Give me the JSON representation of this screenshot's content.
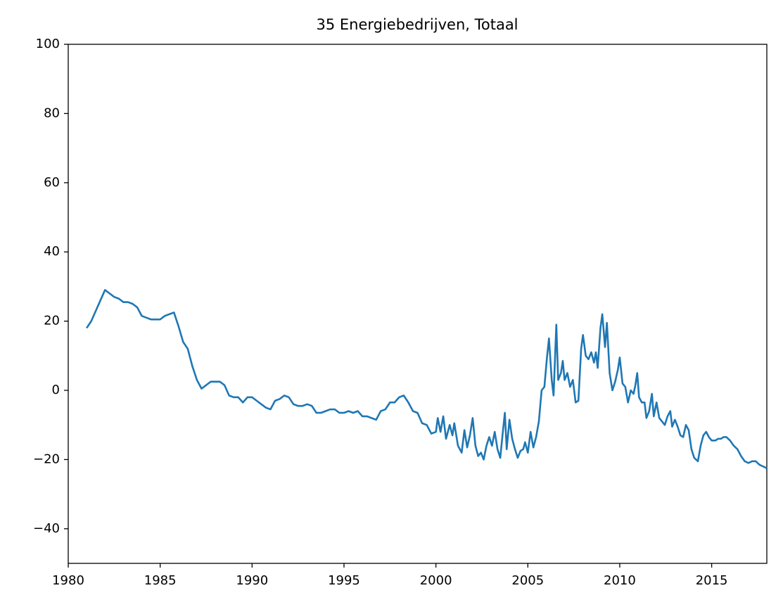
{
  "chart_data": {
    "type": "line",
    "title": "35 Energiebedrijven, Totaal",
    "x": [
      1981.0,
      1981.25,
      1981.5,
      1981.75,
      1982.0,
      1982.25,
      1982.5,
      1982.75,
      1983.0,
      1983.25,
      1983.5,
      1983.75,
      1984.0,
      1984.25,
      1984.5,
      1984.75,
      1985.0,
      1985.25,
      1985.5,
      1985.75,
      1986.0,
      1986.25,
      1986.5,
      1986.75,
      1987.0,
      1987.25,
      1987.5,
      1987.75,
      1988.0,
      1988.25,
      1988.5,
      1988.75,
      1989.0,
      1989.25,
      1989.5,
      1989.75,
      1990.0,
      1990.25,
      1990.5,
      1990.75,
      1991.0,
      1991.25,
      1991.5,
      1991.75,
      1992.0,
      1992.25,
      1992.5,
      1992.75,
      1993.0,
      1993.25,
      1993.5,
      1993.75,
      1994.0,
      1994.25,
      1994.5,
      1994.75,
      1995.0,
      1995.25,
      1995.5,
      1995.75,
      1996.0,
      1996.25,
      1996.5,
      1996.75,
      1997.0,
      1997.25,
      1997.5,
      1997.75,
      1998.0,
      1998.25,
      1998.5,
      1998.75,
      1999.0,
      1999.25,
      1999.5,
      1999.75,
      2000.0,
      2000.1,
      2000.25,
      2000.4,
      2000.55,
      2000.75,
      2000.9,
      2001.0,
      2001.2,
      2001.4,
      2001.55,
      2001.7,
      2001.85,
      2002.0,
      2002.15,
      2002.3,
      2002.45,
      2002.6,
      2002.75,
      2002.9,
      2003.05,
      2003.2,
      2003.35,
      2003.5,
      2003.65,
      2003.75,
      2003.85,
      2004.0,
      2004.15,
      2004.3,
      2004.45,
      2004.6,
      2004.75,
      2004.85,
      2005.0,
      2005.15,
      2005.3,
      2005.45,
      2005.6,
      2005.75,
      2005.9,
      2006.05,
      2006.15,
      2006.3,
      2006.4,
      2006.55,
      2006.65,
      2006.8,
      2006.9,
      2007.0,
      2007.15,
      2007.3,
      2007.45,
      2007.6,
      2007.75,
      2007.9,
      2008.0,
      2008.15,
      2008.3,
      2008.45,
      2008.6,
      2008.7,
      2008.8,
      2008.95,
      2009.05,
      2009.2,
      2009.3,
      2009.45,
      2009.6,
      2009.75,
      2009.9,
      2010.0,
      2010.15,
      2010.3,
      2010.45,
      2010.6,
      2010.75,
      2010.85,
      2010.95,
      2011.05,
      2011.2,
      2011.35,
      2011.45,
      2011.6,
      2011.75,
      2011.85,
      2012.0,
      2012.15,
      2012.3,
      2012.45,
      2012.6,
      2012.75,
      2012.85,
      2013.0,
      2013.15,
      2013.3,
      2013.45,
      2013.6,
      2013.75,
      2013.9,
      2014.05,
      2014.25,
      2014.4,
      2014.55,
      2014.7,
      2014.85,
      2015.0,
      2015.2,
      2015.35,
      2015.5,
      2015.65,
      2015.8,
      2016.0,
      2016.2,
      2016.4,
      2016.6,
      2016.8,
      2017.0,
      2017.2,
      2017.4,
      2017.6,
      2017.8,
      2018.0
    ],
    "values": [
      18,
      20,
      23,
      26,
      29,
      28,
      27,
      26.5,
      25.5,
      25.5,
      25,
      24,
      21.5,
      21,
      20.5,
      20.5,
      20.5,
      21.5,
      22,
      22.5,
      18.5,
      14,
      12,
      7,
      3,
      0.5,
      1.5,
      2.5,
      2.5,
      2.5,
      1.5,
      -1.5,
      -2,
      -2,
      -3.5,
      -2,
      -2,
      -3,
      -4,
      -5,
      -5.5,
      -3,
      -2.5,
      -1.5,
      -2,
      -4,
      -4.5,
      -4.5,
      -4,
      -4.5,
      -6.5,
      -6.5,
      -6,
      -5.5,
      -5.5,
      -6.5,
      -6.5,
      -6,
      -6.5,
      -6,
      -7.5,
      -7.5,
      -8,
      -8.5,
      -6,
      -5.5,
      -3.5,
      -3.5,
      -2,
      -1.5,
      -3.5,
      -6,
      -6.5,
      -9.5,
      -10,
      -12.5,
      -12,
      -8,
      -12,
      -7.5,
      -14,
      -10,
      -13,
      -9.5,
      -16,
      -18,
      -11.5,
      -16.5,
      -13,
      -8,
      -16,
      -19,
      -18,
      -20,
      -16,
      -13.5,
      -16,
      -12,
      -17,
      -19.5,
      -11.5,
      -6.5,
      -17,
      -8.5,
      -14,
      -17,
      -19.5,
      -17.5,
      -17,
      -15,
      -18,
      -12,
      -16.5,
      -13.5,
      -9,
      0,
      1,
      10,
      15,
      3,
      -1.5,
      19,
      3,
      5,
      8.5,
      3,
      5,
      1,
      3,
      -3.5,
      -3,
      12,
      16,
      10,
      9,
      11,
      8,
      11,
      6.5,
      18,
      22,
      12.5,
      19.5,
      5,
      0,
      2.5,
      6,
      9.5,
      2,
      1,
      -3.5,
      0,
      -1,
      1.5,
      5,
      -2,
      -3.5,
      -3.5,
      -8,
      -6,
      -1,
      -7.5,
      -3.5,
      -8,
      -9,
      -10,
      -7.5,
      -6,
      -10.5,
      -8.5,
      -10.5,
      -13,
      -13.5,
      -10,
      -11.5,
      -17,
      -19.5,
      -20.5,
      -16,
      -13,
      -12,
      -13.5,
      -14.5,
      -14.5,
      -14,
      -14,
      -13.5,
      -13.5,
      -14.5,
      -16,
      -17,
      -19,
      -20.5,
      -21,
      -20.5,
      -20.5,
      -21.5,
      -22,
      -22.5
    ],
    "color": "#1f77b4",
    "xlim": [
      1980,
      2018
    ],
    "ylim": [
      -50,
      100
    ],
    "xticks": [
      1980,
      1985,
      1990,
      1995,
      2000,
      2005,
      2010,
      2015
    ],
    "yticks": [
      {
        "value": -40,
        "label": "−40"
      },
      {
        "value": -20,
        "label": "−20"
      },
      0,
      20,
      40,
      60,
      80,
      100
    ]
  }
}
